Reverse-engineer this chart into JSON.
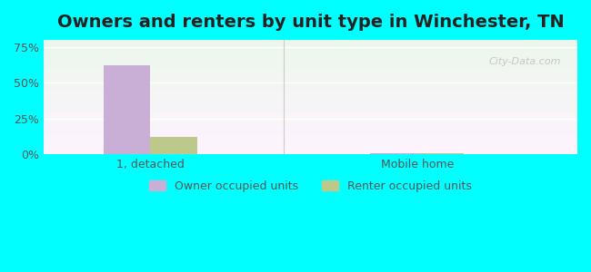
{
  "title": "Owners and renters by unit type in Winchester, TN",
  "categories": [
    "1, detached",
    "Mobile home"
  ],
  "owner_values": [
    62,
    1
  ],
  "renter_values": [
    12,
    1
  ],
  "owner_color": "#c9aed6",
  "renter_color": "#bdc98a",
  "yticks": [
    0,
    25,
    50,
    75
  ],
  "yticklabels": [
    "0%",
    "25%",
    "50%",
    "75%"
  ],
  "ylim": [
    0,
    80
  ],
  "background_color": "#00ffff",
  "plot_bg_top": "#e8f5e8",
  "plot_bg_bottom": "#f5f5f5",
  "title_fontsize": 14,
  "legend_labels": [
    "Owner occupied units",
    "Renter occupied units"
  ],
  "watermark": "City-Data.com",
  "bar_width": 0.35,
  "group_positions": [
    1,
    3
  ]
}
